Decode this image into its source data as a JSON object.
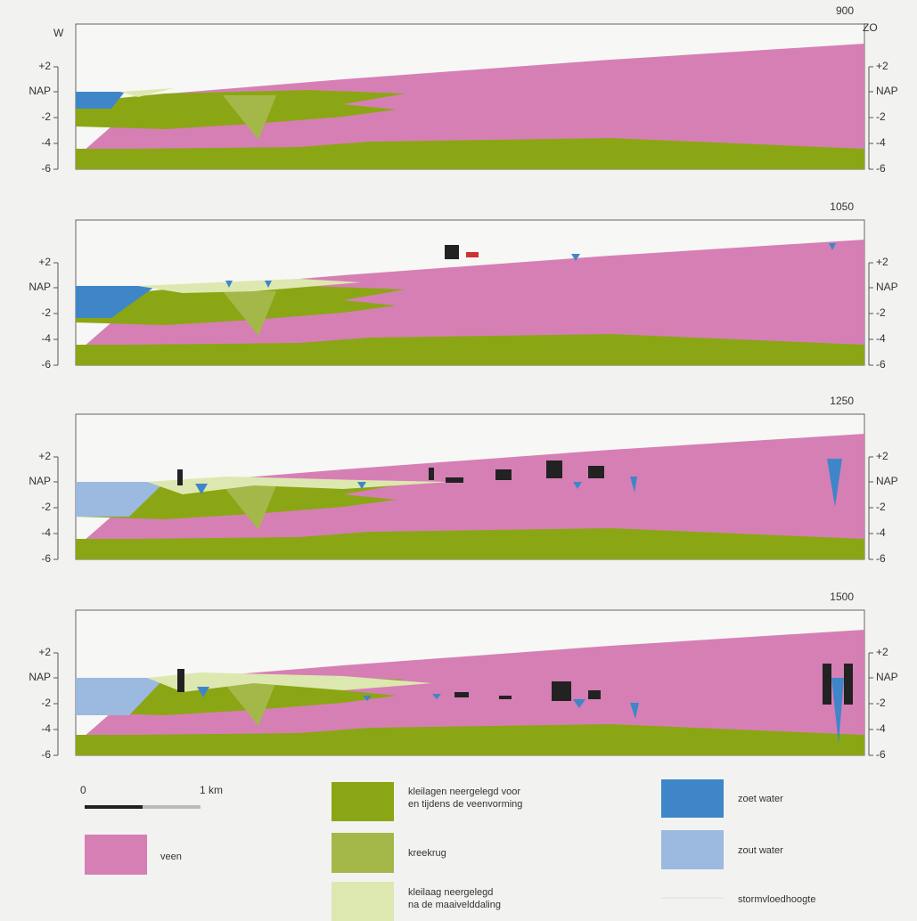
{
  "compass": {
    "west": "W",
    "east": "ZO"
  },
  "axis_labels": [
    "+2",
    "NAP",
    "-2",
    "-4",
    "-6"
  ],
  "panels": [
    {
      "year": "900"
    },
    {
      "year": "1050"
    },
    {
      "year": "1250"
    },
    {
      "year": "1500"
    }
  ],
  "scale": {
    "start": "0",
    "end": "1 km"
  },
  "legend": [
    {
      "lines": [
        "veen"
      ]
    },
    {
      "lines": [
        "kleilagen neergelegd voor",
        "en tijdens de veenvorming"
      ]
    },
    {
      "lines": [
        "kreekrug"
      ]
    },
    {
      "lines": [
        "kleilaag neergelegd",
        "na de maaivelddaling"
      ]
    },
    {
      "lines": [
        "zoet water"
      ]
    },
    {
      "lines": [
        "zout water"
      ]
    },
    {
      "lines": [
        "stormvloedhoogte"
      ]
    }
  ]
}
